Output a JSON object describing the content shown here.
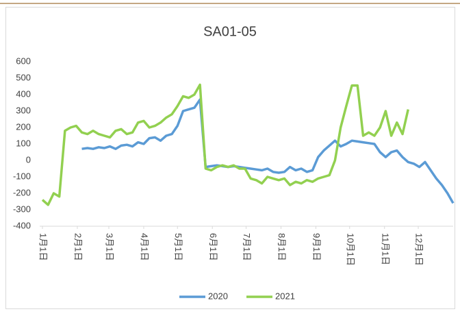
{
  "chart_data": {
    "type": "line",
    "title": "SA01-05",
    "x": [
      1,
      6,
      11,
      16,
      21,
      26,
      31,
      36,
      41,
      46,
      51,
      56,
      61,
      66,
      71,
      76,
      81,
      86,
      91,
      96,
      101,
      106,
      111,
      116,
      121,
      126,
      131,
      136,
      141,
      146,
      151,
      156,
      161,
      166,
      171,
      176,
      181,
      186,
      191,
      196,
      201,
      206,
      211,
      216,
      221,
      226,
      231,
      236,
      241,
      246,
      251,
      256,
      261,
      266,
      271,
      276,
      281,
      286,
      291,
      296,
      301,
      306,
      311,
      316,
      321,
      326,
      331,
      336,
      341,
      346,
      351,
      356,
      361,
      366
    ],
    "xlim": [
      1,
      366
    ],
    "xticks": [
      {
        "value": 1,
        "label": "1月1日"
      },
      {
        "value": 32,
        "label": "2月1日"
      },
      {
        "value": 60,
        "label": "3月1日"
      },
      {
        "value": 91,
        "label": "4月1日"
      },
      {
        "value": 121,
        "label": "5月1日"
      },
      {
        "value": 152,
        "label": "6月1日"
      },
      {
        "value": 182,
        "label": "7月1日"
      },
      {
        "value": 213,
        "label": "8月1日"
      },
      {
        "value": 244,
        "label": "9月1日"
      },
      {
        "value": 274,
        "label": "10月1日"
      },
      {
        "value": 305,
        "label": "11月1日"
      },
      {
        "value": 335,
        "label": "12月1日"
      }
    ],
    "ylim": [
      -400,
      600
    ],
    "yticks": [
      -400,
      -300,
      -200,
      -100,
      0,
      100,
      200,
      300,
      400,
      500,
      600
    ],
    "legend": "bottom",
    "series": [
      {
        "name": "2020",
        "color": "#5b9bd5",
        "values": [
          null,
          null,
          null,
          null,
          null,
          null,
          null,
          70,
          75,
          70,
          80,
          75,
          85,
          70,
          90,
          95,
          85,
          110,
          100,
          135,
          140,
          120,
          150,
          160,
          210,
          300,
          310,
          320,
          370,
          -40,
          -35,
          -30,
          -35,
          -40,
          -35,
          -40,
          -45,
          -50,
          -55,
          -60,
          -50,
          -70,
          -75,
          -70,
          -40,
          -60,
          -50,
          -70,
          -60,
          20,
          60,
          90,
          120,
          85,
          100,
          120,
          115,
          110,
          105,
          100,
          50,
          20,
          50,
          60,
          20,
          -10,
          -20,
          -40,
          -10,
          -60,
          -110,
          -150,
          -200,
          -260
        ]
      },
      {
        "name": "2021",
        "color": "#92d050",
        "values": [
          -240,
          -270,
          -200,
          -220,
          180,
          200,
          210,
          170,
          160,
          180,
          160,
          150,
          140,
          180,
          190,
          160,
          170,
          230,
          240,
          200,
          210,
          230,
          260,
          280,
          330,
          390,
          380,
          400,
          460,
          -50,
          -60,
          -40,
          -30,
          -40,
          -30,
          -50,
          -50,
          -110,
          -120,
          -140,
          -100,
          -110,
          -120,
          -110,
          -150,
          -130,
          -140,
          -120,
          -130,
          -110,
          -100,
          -90,
          0,
          200,
          330,
          455,
          455,
          150,
          170,
          150,
          200,
          300,
          150,
          230,
          160,
          310,
          null,
          null,
          null,
          null,
          null,
          null,
          null,
          null
        ]
      }
    ]
  }
}
